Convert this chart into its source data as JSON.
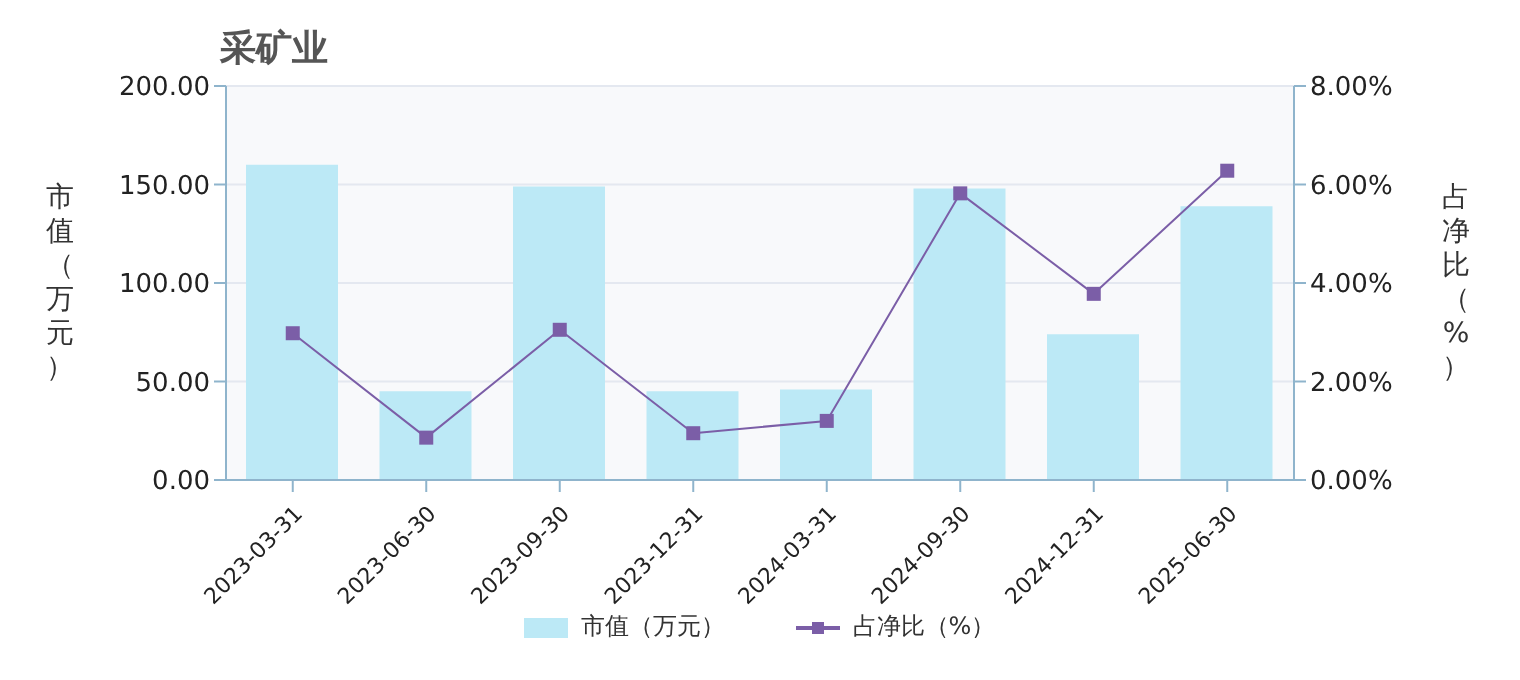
{
  "chart_data": {
    "type": "bar",
    "title": "采矿业",
    "ylabel": "市值（万元）",
    "y2label": "占净比（%）",
    "categories": [
      "2023-03-31",
      "2023-06-30",
      "2023-09-30",
      "2023-12-31",
      "2024-03-31",
      "2024-09-30",
      "2024-12-31",
      "2025-06-30"
    ],
    "series": [
      {
        "name": "市值（万元）",
        "color": "#bce9f6",
        "values": [
          160,
          45,
          149,
          45,
          46,
          148,
          74,
          139
        ]
      },
      {
        "name": "占净比（%）",
        "type": "line",
        "axis": "y2",
        "color": "#7b5ea7",
        "marker": "square",
        "values": [
          2.98,
          0.86,
          3.05,
          0.95,
          1.2,
          5.82,
          3.78,
          6.28
        ]
      }
    ],
    "ylim": [
      0,
      200
    ],
    "yticks": [
      {
        "value": 0,
        "label": "0.00"
      },
      {
        "value": 50,
        "label": "50.00"
      },
      {
        "value": 100,
        "label": "100.00"
      },
      {
        "value": 150,
        "label": "150.00"
      },
      {
        "value": 200,
        "label": "200.00"
      }
    ],
    "y2lim": [
      0,
      8
    ],
    "y2ticks": [
      {
        "value": 0,
        "label": "0.00%"
      },
      {
        "value": 2,
        "label": "2.00%"
      },
      {
        "value": 4,
        "label": "4.00%"
      },
      {
        "value": 6,
        "label": "6.00%"
      },
      {
        "value": 8,
        "label": "8.00%"
      }
    ],
    "grid": "y",
    "legend": "bottom"
  }
}
